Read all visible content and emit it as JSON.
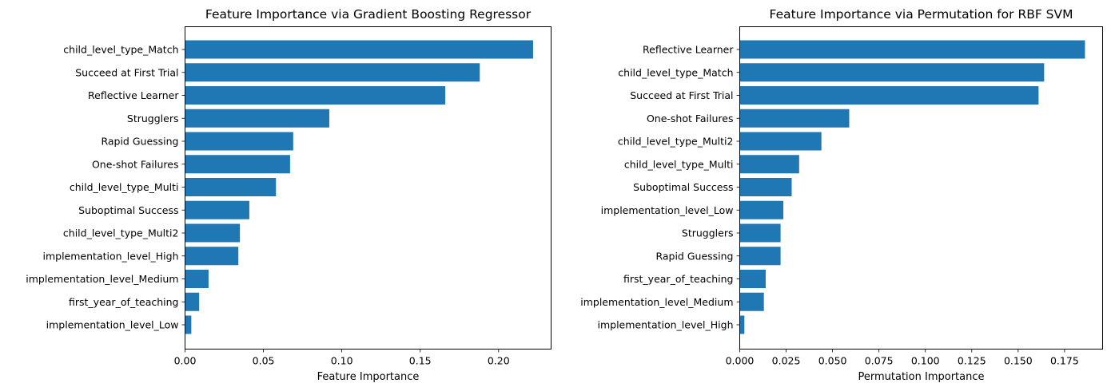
{
  "chart_data": [
    {
      "type": "bar",
      "orientation": "horizontal",
      "title": "Feature Importance via Gradient Boosting Regressor",
      "xlabel": "Feature Importance",
      "ylabel": "",
      "categories": [
        "child_level_type_Match",
        "Succeed at First Trial",
        "Reflective Learner",
        "Strugglers",
        "Rapid Guessing",
        "One-shot Failures",
        "child_level_type_Multi",
        "Suboptimal Success",
        "child_level_type_Multi2",
        "implementation_level_High",
        "implementation_level_Medium",
        "first_year_of_teaching",
        "implementation_level_Low"
      ],
      "values": [
        0.222,
        0.188,
        0.166,
        0.092,
        0.069,
        0.067,
        0.058,
        0.041,
        0.035,
        0.034,
        0.015,
        0.009,
        0.004
      ],
      "xlim": [
        0,
        0.2335
      ],
      "xticks": [
        0.0,
        0.05,
        0.1,
        0.15,
        0.2
      ],
      "xtick_labels": [
        "0.00",
        "0.05",
        "0.10",
        "0.15",
        "0.20"
      ],
      "grid": false,
      "bar_color": "#1f77b4"
    },
    {
      "type": "bar",
      "orientation": "horizontal",
      "title": "Feature Importance via Permutation for RBF SVM",
      "xlabel": "Permutation Importance",
      "ylabel": "",
      "categories": [
        "Reflective Learner",
        "child_level_type_Match",
        "Succeed at First Trial",
        "One-shot Failures",
        "child_level_type_Multi2",
        "child_level_type_Multi",
        "Suboptimal Success",
        "implementation_level_Low",
        "Strugglers",
        "Rapid Guessing",
        "first_year_of_teaching",
        "implementation_level_Medium",
        "implementation_level_High"
      ],
      "values": [
        0.186,
        0.164,
        0.161,
        0.059,
        0.044,
        0.032,
        0.028,
        0.0235,
        0.022,
        0.022,
        0.014,
        0.013,
        0.0025
      ],
      "xlim": [
        0,
        0.1955
      ],
      "xticks": [
        0.0,
        0.025,
        0.05,
        0.075,
        0.1,
        0.125,
        0.15,
        0.175
      ],
      "xtick_labels": [
        "0.000",
        "0.025",
        "0.050",
        "0.075",
        "0.100",
        "0.125",
        "0.150",
        "0.175"
      ],
      "grid": false,
      "bar_color": "#1f77b4"
    }
  ]
}
